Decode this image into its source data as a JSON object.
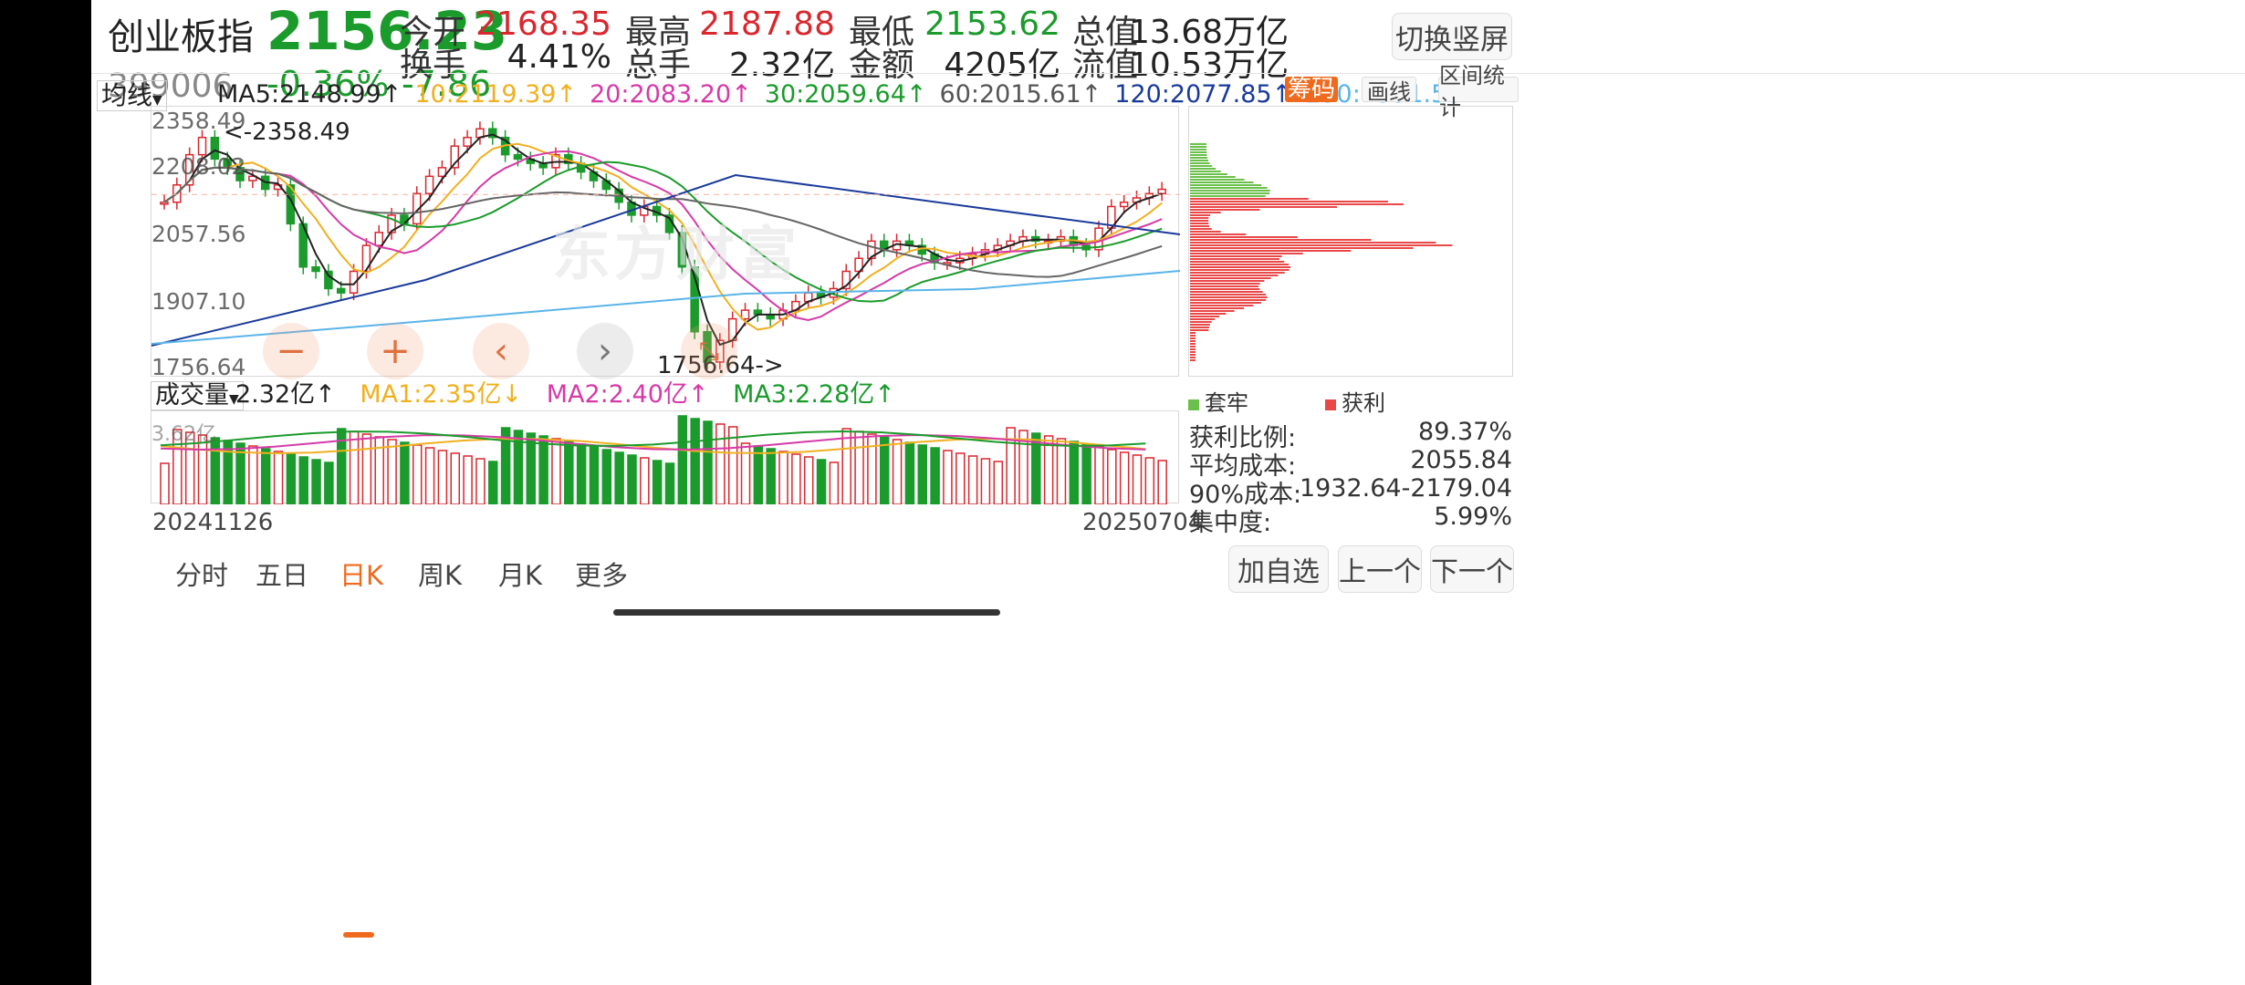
{
  "header": {
    "name": "创业板指",
    "price": "2156.23",
    "code": "399006",
    "change_pct": "-0.36%",
    "change": "-7.86",
    "fields": [
      {
        "label": "今开",
        "value": "2168.35",
        "color": "red"
      },
      {
        "label": "最高",
        "value": "2187.88",
        "color": "red"
      },
      {
        "label": "最低",
        "value": "2153.62",
        "color": "green"
      },
      {
        "label": "总值",
        "value": "13.68万亿",
        "color": "dark"
      },
      {
        "label": "换手",
        "value": "4.41%",
        "color": "dark"
      },
      {
        "label": "总手",
        "value": "2.32亿",
        "color": "dark"
      },
      {
        "label": "金额",
        "value": "4205亿",
        "color": "dark"
      },
      {
        "label": "流值",
        "value": "10.53万亿",
        "color": "dark"
      }
    ],
    "switch_button": "切换竖屏"
  },
  "ma_bar": {
    "selector": "均线",
    "items": [
      {
        "text": "MA5:2148.99↑",
        "color": "#222222"
      },
      {
        "text": "10:2119.39↑",
        "color": "#f0b020"
      },
      {
        "text": "20:2083.20↑",
        "color": "#d63aa8"
      },
      {
        "text": "30:2059.64↑",
        "color": "#1b9b2c"
      },
      {
        "text": "60:2015.61↑",
        "color": "#555555"
      },
      {
        "text": "120:2077.85↑",
        "color": "#1a3a9a"
      },
      {
        "text": "250:1991.58↑",
        "color": "#5ab4e8"
      }
    ],
    "chip_button": "筹码",
    "draw_button": "画线",
    "range_button": "区间统计"
  },
  "kline": {
    "price_axis": [
      "2358.49",
      "2208.02",
      "2057.56",
      "1907.10",
      "1756.64"
    ],
    "high_label": "<-2358.49",
    "low_label": "1756.64->",
    "watermark": "东方财富"
  },
  "volume_bar": {
    "selector": "成交量",
    "current": "2.32亿↑",
    "ma1": "MA1:2.35亿↓",
    "ma2": "MA2:2.40亿↑",
    "ma3": "MA3:2.28亿↑",
    "axis_top": "3.62亿"
  },
  "dates": {
    "start": "20241126",
    "end": "20250704"
  },
  "chips": {
    "legend_trapped": "套牢",
    "legend_profit": "获利",
    "stats": [
      {
        "label": "获利比例:",
        "value": "89.37%"
      },
      {
        "label": "平均成本:",
        "value": "2055.84"
      },
      {
        "label": "90%成本:",
        "value": "1932.64-2179.04"
      },
      {
        "label": "集中度:",
        "value": "5.99%"
      }
    ]
  },
  "tabs": [
    "分时",
    "五日",
    "日K",
    "周K",
    "月K",
    "更多"
  ],
  "active_tab": "日K",
  "actions": {
    "add": "加自选",
    "prev": "上一个",
    "next": "下一个"
  },
  "colors": {
    "up": "#d9272e",
    "down": "#1b9b2c",
    "accent": "#f06a1d"
  }
}
